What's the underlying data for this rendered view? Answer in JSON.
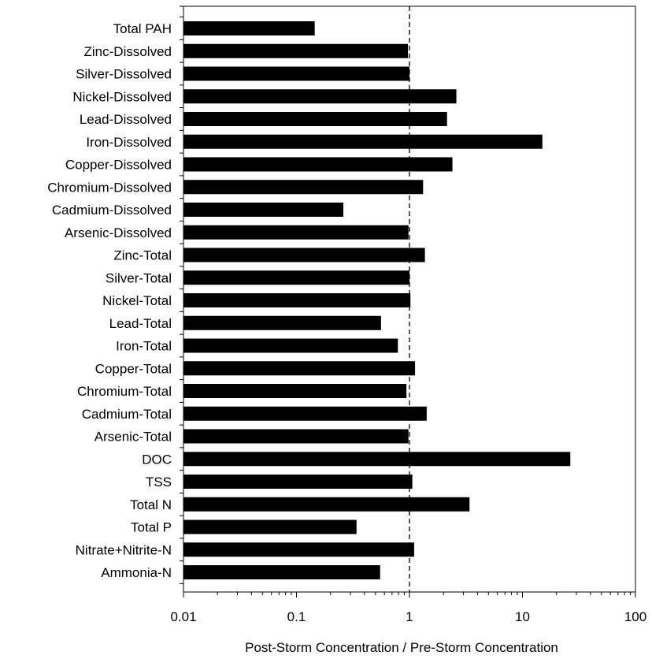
{
  "chart_data": {
    "type": "bar",
    "orientation": "horizontal",
    "title": "",
    "xlabel": "Post-Storm Concentration / Pre-Storm Concentration",
    "ylabel": "",
    "x_scale": "log",
    "xlim": [
      0.01,
      100
    ],
    "x_ticks": [
      "0.01",
      "0.1",
      "1",
      "10",
      "100"
    ],
    "reference_line": {
      "x": 1,
      "style": "dashed"
    },
    "grid": false,
    "bar_color": "#000000",
    "categories": [
      "Total PAH",
      "Zinc-Dissolved",
      "Silver-Dissolved",
      "Nickel-Dissolved",
      "Lead-Dissolved",
      "Iron-Dissolved",
      "Copper-Dissolved",
      "Chromium-Dissolved",
      "Cadmium-Dissolved",
      "Arsenic-Dissolved",
      "Zinc-Total",
      "Silver-Total",
      "Nickel-Total",
      "Lead-Total",
      "Iron-Total",
      "Copper-Total",
      "Chromium-Total",
      "Cadmium-Total",
      "Arsenic-Total",
      "DOC",
      "TSS",
      "Total N",
      "Total P",
      "Nitrate+Nitrite-N",
      "Ammonia-N"
    ],
    "values": [
      0.145,
      0.97,
      1.0,
      2.6,
      2.15,
      15.0,
      2.4,
      1.32,
      0.26,
      0.98,
      1.37,
      1.0,
      1.02,
      0.56,
      0.79,
      1.12,
      0.94,
      1.42,
      0.98,
      26.5,
      1.06,
      3.4,
      0.34,
      1.1,
      0.55
    ]
  }
}
